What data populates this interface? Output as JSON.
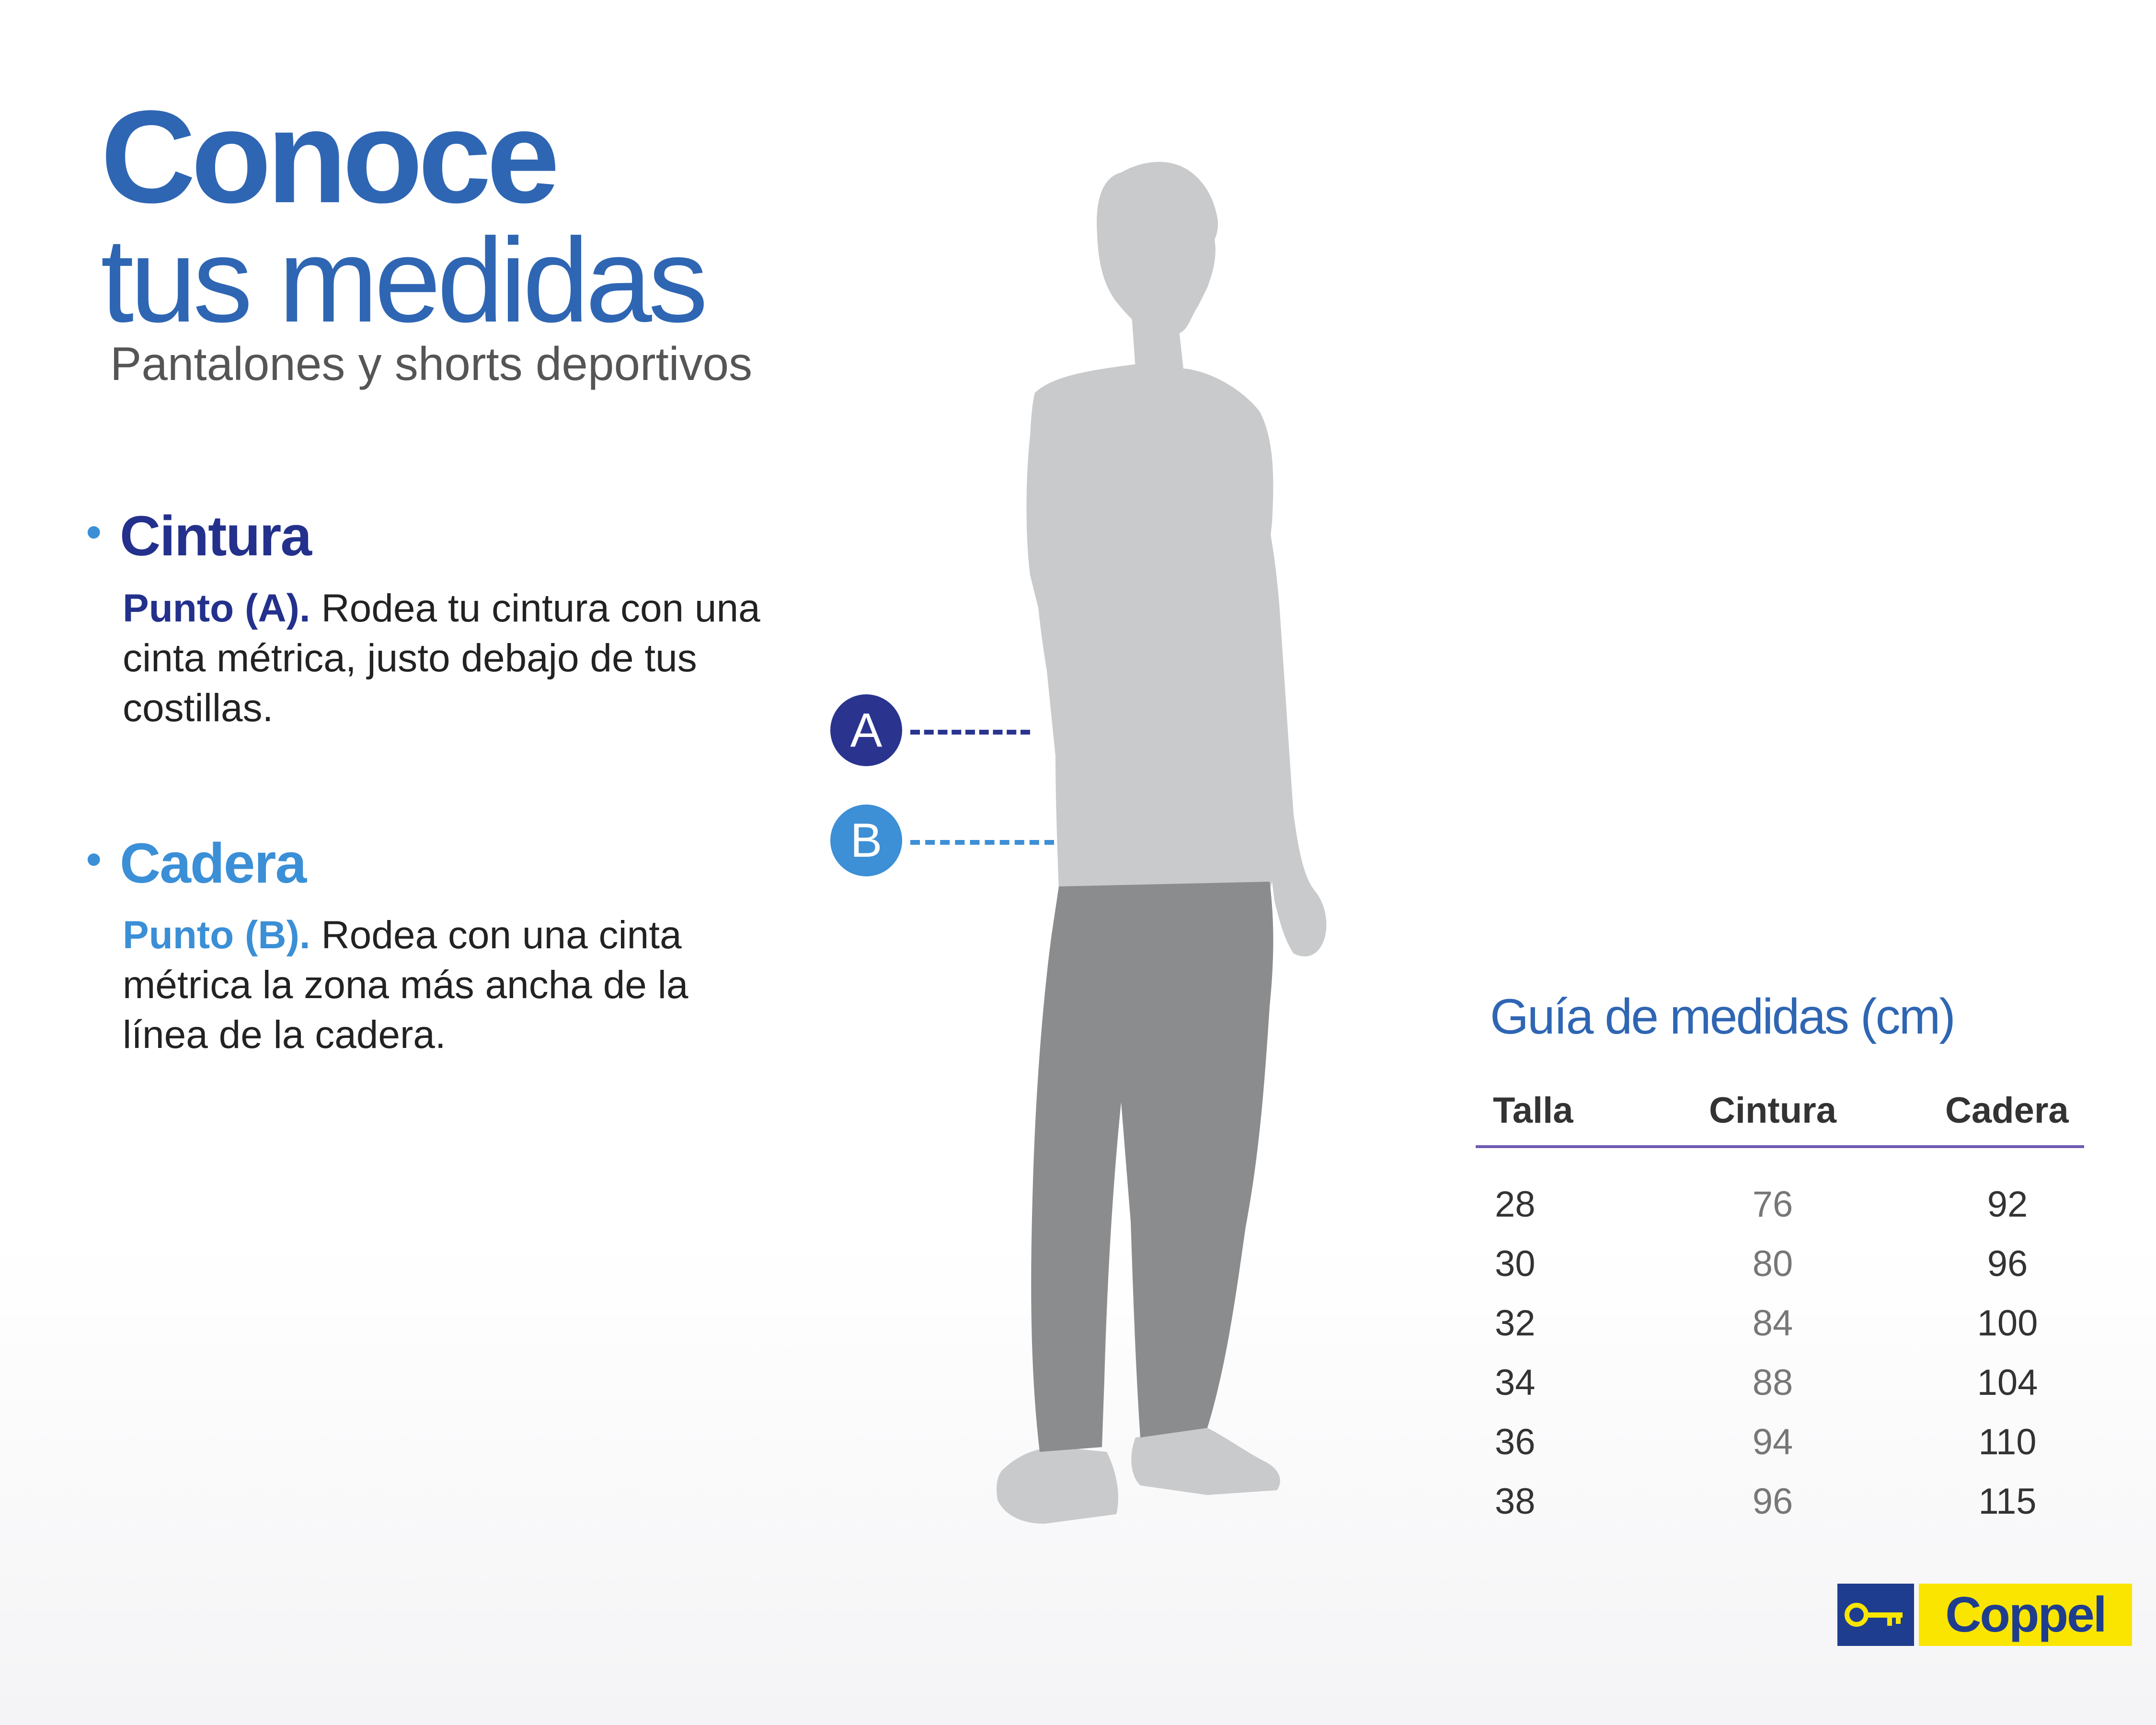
{
  "colors": {
    "title_blue": "#2f66b3",
    "cintura_blue": "#23318c",
    "cadera_blue": "#3b8fd6",
    "marker_a": "#2a348f",
    "marker_b": "#3d8fd6",
    "table_rule": "#6f5ab3",
    "silhouette_light": "#c9cacc",
    "silhouette_dark": "#8b8c8e",
    "brand_yellow": "#f9e500",
    "brand_navy": "#1f3d8f"
  },
  "header": {
    "title_bold": "Conoce",
    "title_light": "tus medidas",
    "subtitle": "Pantalones y shorts deportivos"
  },
  "sections": [
    {
      "bullet": "•",
      "heading": "Cintura",
      "lead": "Punto (A).",
      "body": " Rodea tu cintura con una cinta métrica, justo debajo de tus costillas."
    },
    {
      "bullet": "•",
      "heading": "Cadera",
      "lead": "Punto (B).",
      "body": " Rodea con una cinta métrica la zona más ancha de la línea de la cadera."
    }
  ],
  "markers": {
    "a": "A",
    "b": "B"
  },
  "size_guide": {
    "title": "Guía de medidas (cm)",
    "columns": [
      "Talla",
      "Cintura",
      "Cadera"
    ],
    "rows": [
      [
        "28",
        "76",
        "92"
      ],
      [
        "30",
        "80",
        "96"
      ],
      [
        "32",
        "84",
        "100"
      ],
      [
        "34",
        "88",
        "104"
      ],
      [
        "36",
        "94",
        "110"
      ],
      [
        "38",
        "96",
        "115"
      ]
    ]
  },
  "brand": {
    "name": "Coppel",
    "icon": "key-icon"
  }
}
